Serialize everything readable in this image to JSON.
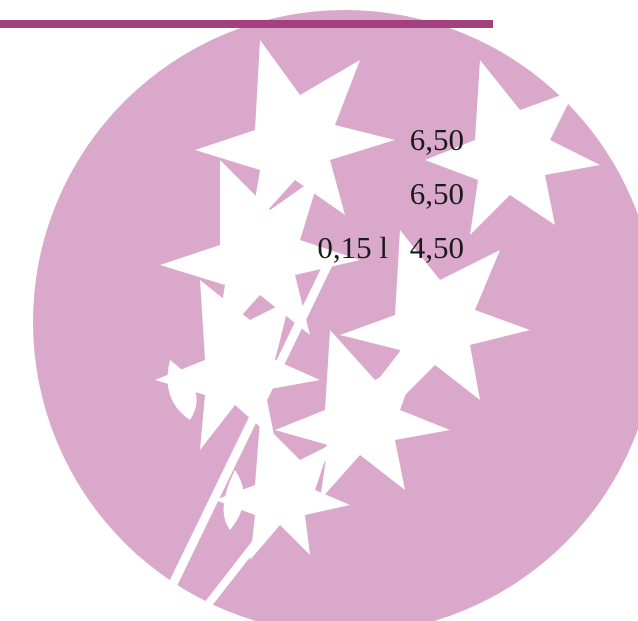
{
  "menu": {
    "items": [
      {
        "price": "6,50"
      },
      {
        "price": "6,50"
      },
      {
        "size": "0,15 l",
        "price": "4,50"
      }
    ]
  }
}
